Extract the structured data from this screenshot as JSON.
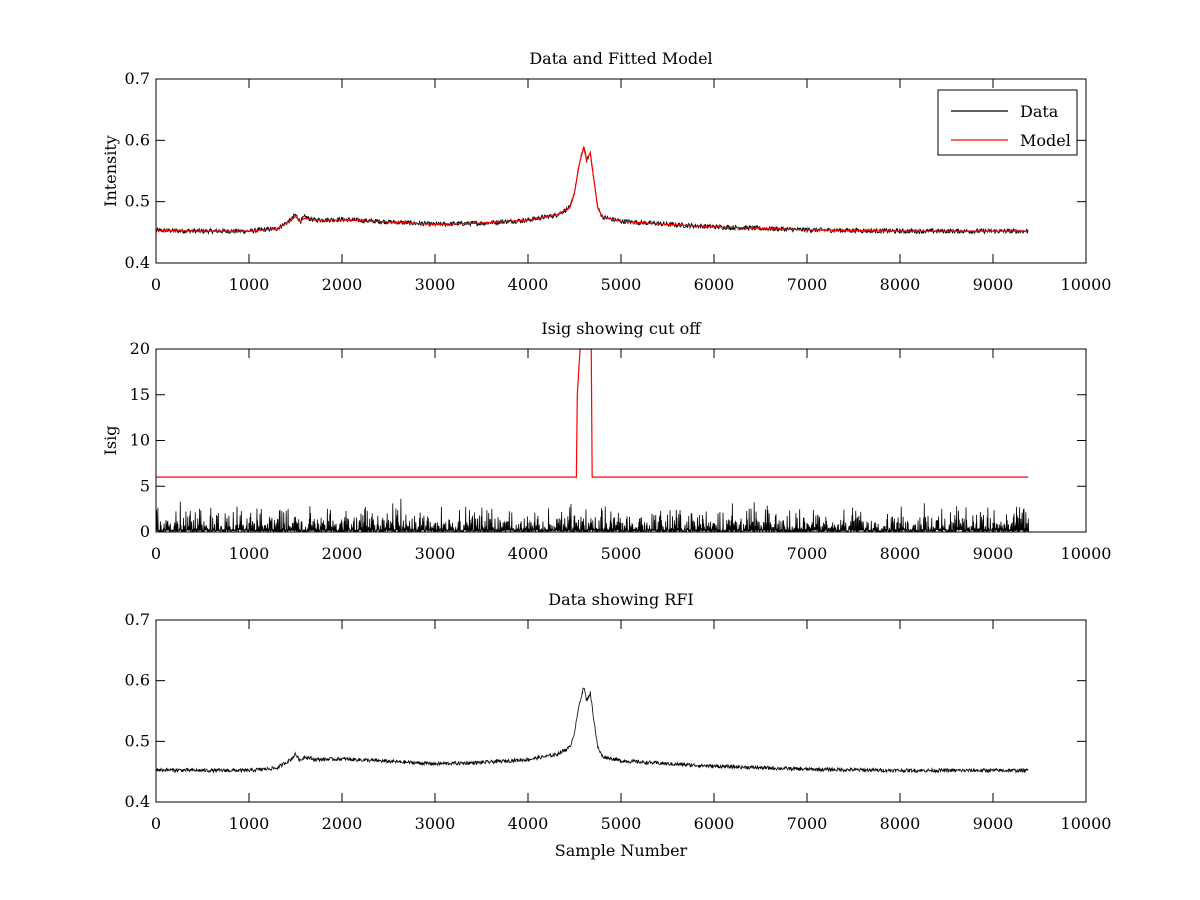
{
  "chart_data": [
    {
      "type": "line",
      "title": "Data and Fitted Model",
      "xlabel": "",
      "ylabel": "Intensity",
      "xlim": [
        0,
        10000
      ],
      "ylim": [
        0.4,
        0.7
      ],
      "xticks": [
        0,
        1000,
        2000,
        3000,
        4000,
        5000,
        6000,
        7000,
        8000,
        9000,
        10000
      ],
      "xtick_labels": [
        "0",
        "1000",
        "2000",
        "3000",
        "4000",
        "5000",
        "6000",
        "7000",
        "8000",
        "9000",
        "10000"
      ],
      "yticks": [
        0.4,
        0.5,
        0.6,
        0.7
      ],
      "ytick_labels": [
        "0.4",
        "0.5",
        "0.6",
        "0.7"
      ],
      "legend": {
        "position": "top-right",
        "entries": [
          {
            "label": "Data",
            "color": "#000000"
          },
          {
            "label": "Model",
            "color": "#ff0000"
          }
        ]
      },
      "series": [
        {
          "name": "Data",
          "color": "#000000",
          "x": [
            0,
            500,
            1000,
            1300,
            1450,
            1500,
            1550,
            1600,
            1700,
            2000,
            2500,
            3000,
            3500,
            4000,
            4300,
            4450,
            4500,
            4550,
            4600,
            4630,
            4670,
            4700,
            4750,
            4800,
            5000,
            5500,
            6000,
            7000,
            8000,
            9000,
            9380
          ],
          "y": [
            0.453,
            0.452,
            0.452,
            0.456,
            0.47,
            0.479,
            0.468,
            0.475,
            0.47,
            0.471,
            0.467,
            0.463,
            0.465,
            0.47,
            0.478,
            0.49,
            0.515,
            0.56,
            0.59,
            0.567,
            0.58,
            0.545,
            0.49,
            0.475,
            0.468,
            0.463,
            0.459,
            0.454,
            0.452,
            0.452,
            0.452
          ],
          "noise": 0.004
        },
        {
          "name": "Model",
          "color": "#ff0000",
          "x": [
            0,
            500,
            1000,
            1300,
            1450,
            1500,
            1550,
            1600,
            1700,
            2000,
            2500,
            3000,
            3500,
            4000,
            4300,
            4450,
            4500,
            4550,
            4600,
            4630,
            4670,
            4700,
            4750,
            4800,
            5000,
            5500,
            6000,
            7000,
            8000,
            9000,
            9380
          ],
          "y": [
            0.453,
            0.452,
            0.452,
            0.456,
            0.469,
            0.476,
            0.468,
            0.473,
            0.47,
            0.47,
            0.467,
            0.463,
            0.465,
            0.47,
            0.478,
            0.49,
            0.515,
            0.56,
            0.59,
            0.567,
            0.58,
            0.545,
            0.49,
            0.475,
            0.468,
            0.463,
            0.459,
            0.454,
            0.452,
            0.452,
            0.452
          ]
        }
      ]
    },
    {
      "type": "line",
      "title": "Isig showing cut off",
      "xlabel": "",
      "ylabel": "Isig",
      "xlim": [
        0,
        10000
      ],
      "ylim": [
        0,
        20
      ],
      "xticks": [
        0,
        1000,
        2000,
        3000,
        4000,
        5000,
        6000,
        7000,
        8000,
        9000,
        10000
      ],
      "xtick_labels": [
        "0",
        "1000",
        "2000",
        "3000",
        "4000",
        "5000",
        "6000",
        "7000",
        "8000",
        "9000",
        "10000"
      ],
      "yticks": [
        0,
        5,
        10,
        15,
        20
      ],
      "ytick_labels": [
        "0",
        "5",
        "10",
        "15",
        "20"
      ],
      "series": [
        {
          "name": "Isig",
          "color": "#000000",
          "x_start": 0,
          "x_end": 9380,
          "typical_max": 2.5,
          "peak_max": 3.8
        },
        {
          "name": "Cut off",
          "color": "#ff0000",
          "x": [
            0,
            4520,
            4530,
            4560,
            4680,
            4690,
            9380
          ],
          "y": [
            6,
            6,
            15,
            20,
            20,
            6,
            6
          ]
        }
      ]
    },
    {
      "type": "line",
      "title": "Data showing RFI",
      "xlabel": "Sample Number",
      "ylabel": "",
      "xlim": [
        0,
        10000
      ],
      "ylim": [
        0.4,
        0.7
      ],
      "xticks": [
        0,
        1000,
        2000,
        3000,
        4000,
        5000,
        6000,
        7000,
        8000,
        9000,
        10000
      ],
      "xtick_labels": [
        "0",
        "1000",
        "2000",
        "3000",
        "4000",
        "5000",
        "6000",
        "7000",
        "8000",
        "9000",
        "10000"
      ],
      "yticks": [
        0.4,
        0.5,
        0.6,
        0.7
      ],
      "ytick_labels": [
        "0.4",
        "0.5",
        "0.6",
        "0.7"
      ],
      "series": [
        {
          "name": "Data",
          "color": "#000000",
          "x": [
            0,
            500,
            1000,
            1300,
            1450,
            1500,
            1550,
            1600,
            1700,
            2000,
            2500,
            3000,
            3500,
            4000,
            4300,
            4450,
            4500,
            4550,
            4600,
            4630,
            4670,
            4700,
            4750,
            4800,
            5000,
            5500,
            6000,
            7000,
            8000,
            9000,
            9380
          ],
          "y": [
            0.453,
            0.452,
            0.452,
            0.456,
            0.47,
            0.479,
            0.468,
            0.475,
            0.47,
            0.471,
            0.467,
            0.463,
            0.465,
            0.47,
            0.478,
            0.49,
            0.515,
            0.56,
            0.59,
            0.567,
            0.58,
            0.545,
            0.49,
            0.475,
            0.468,
            0.463,
            0.459,
            0.454,
            0.452,
            0.452,
            0.452
          ],
          "noise": 0.003
        }
      ]
    }
  ]
}
